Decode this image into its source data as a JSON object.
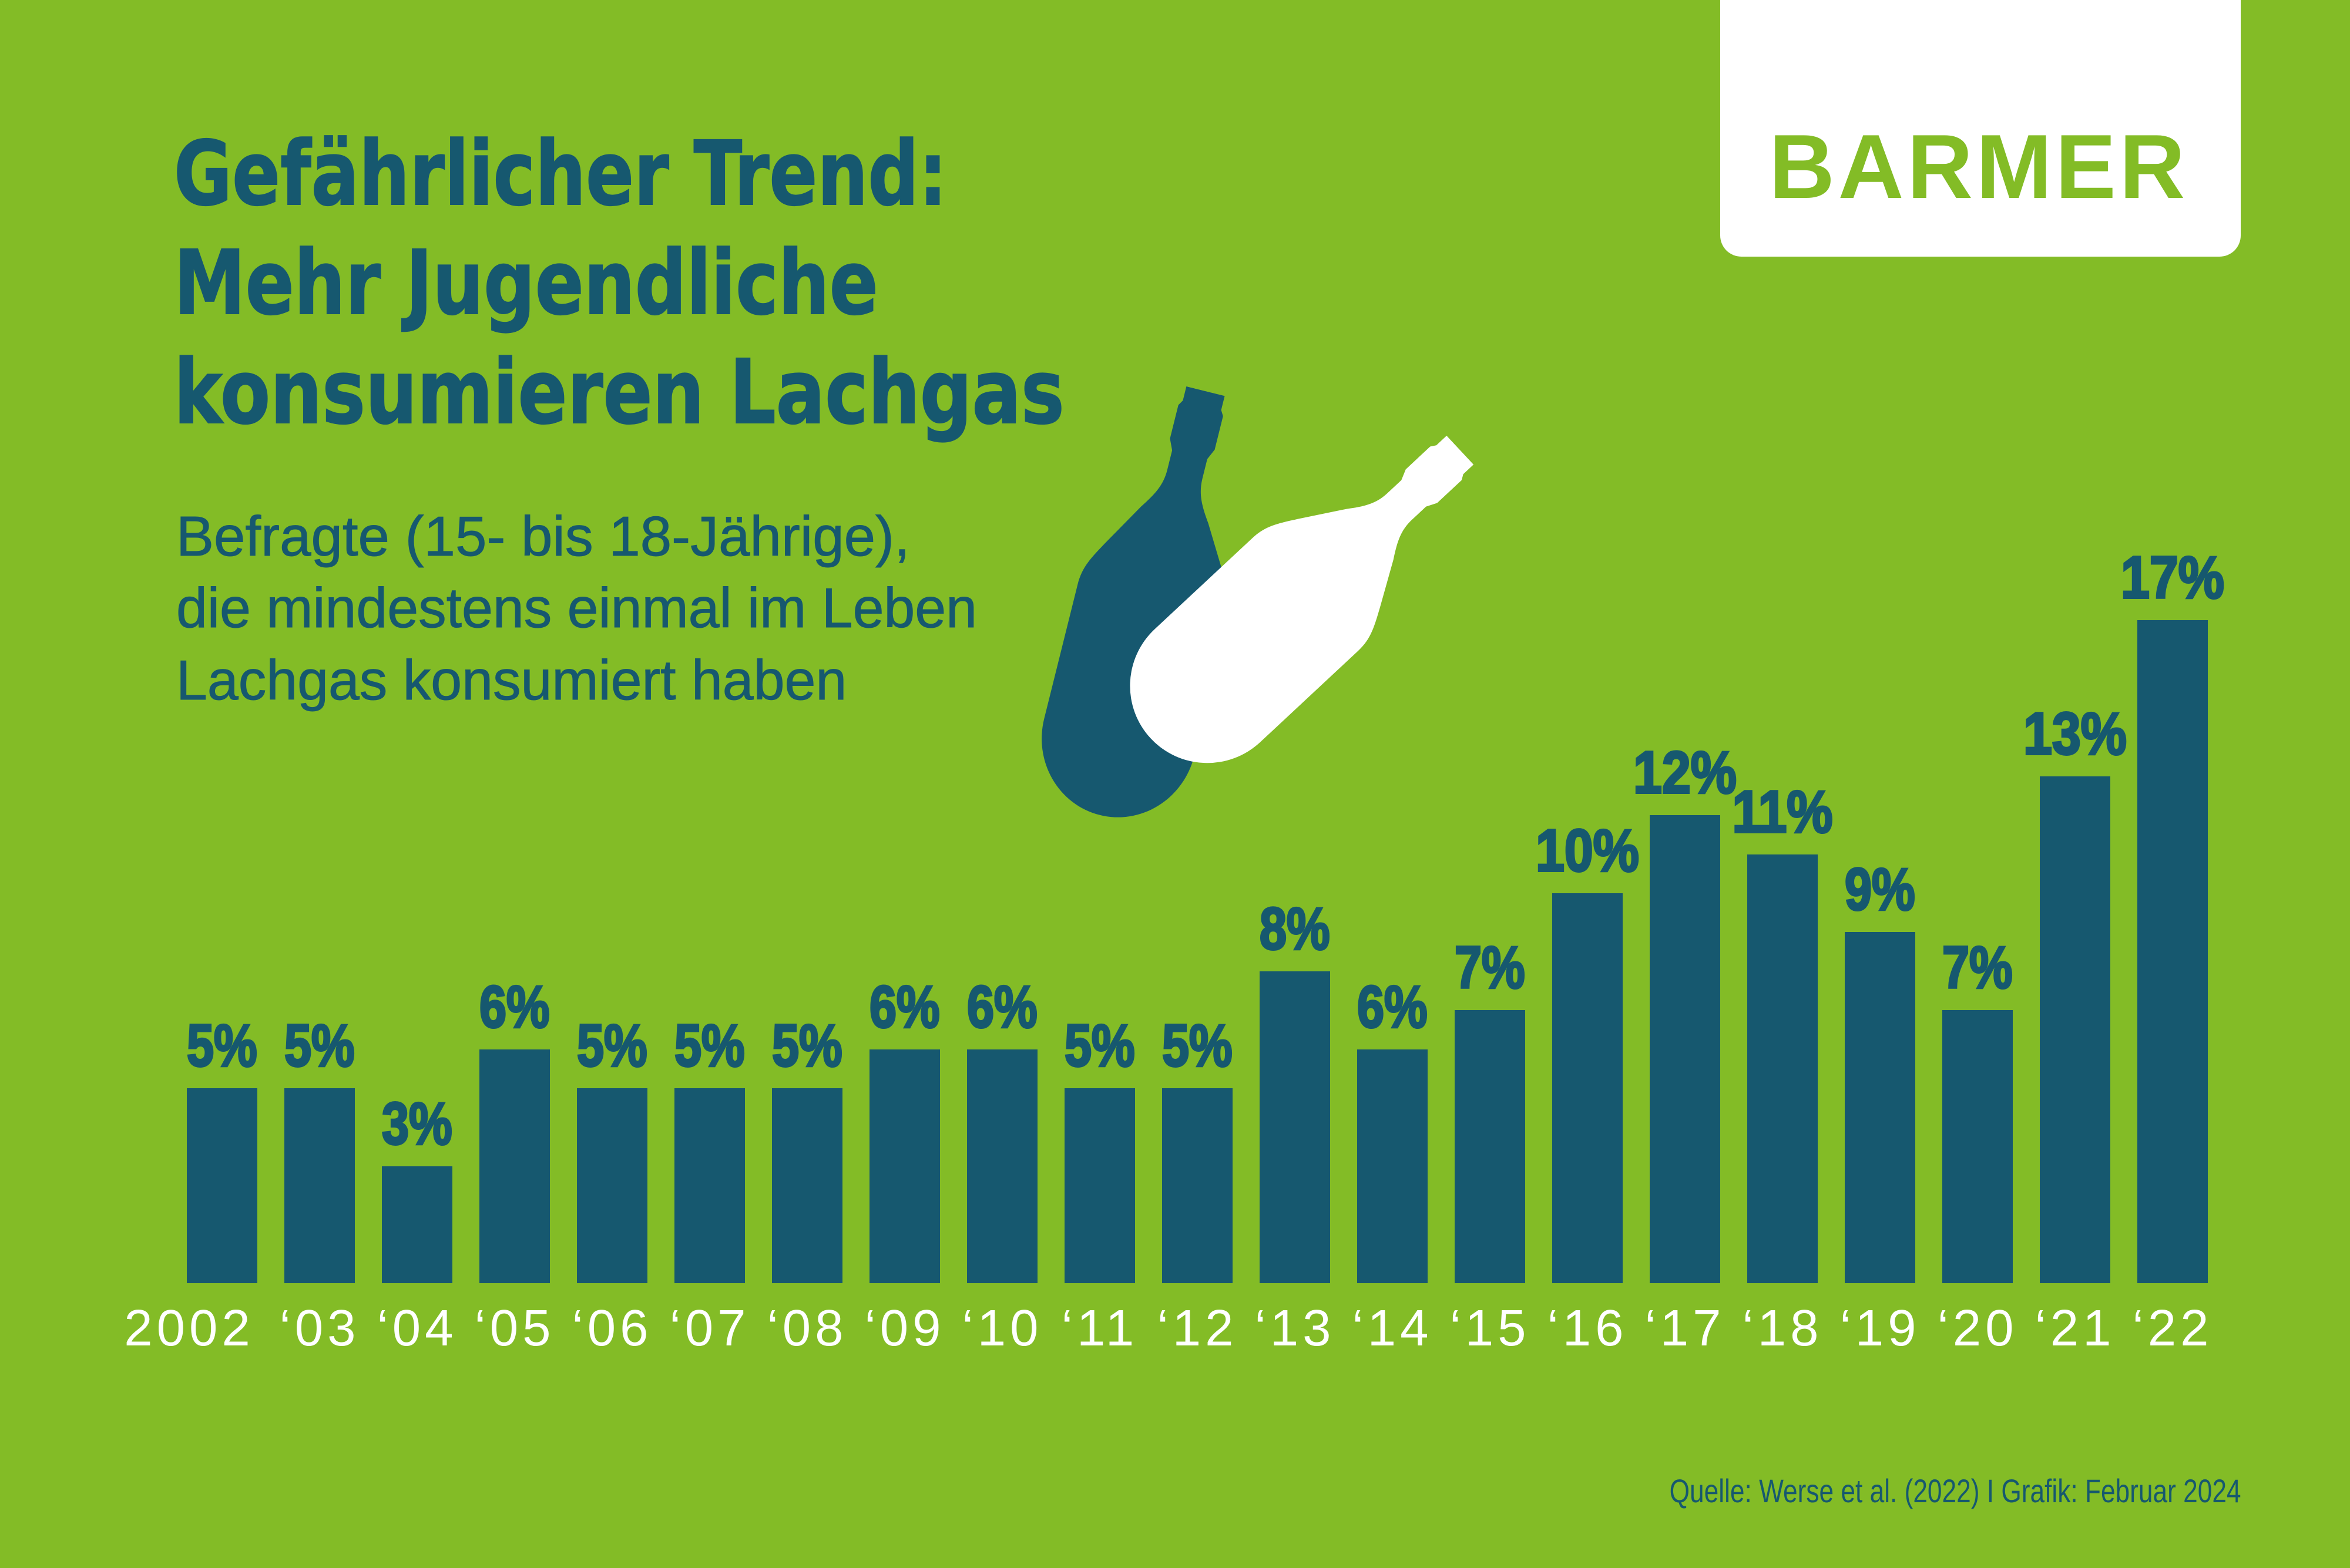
{
  "brand": {
    "logo_text": "BARMER"
  },
  "title": {
    "lines": [
      "Gefährlicher Trend:",
      "Mehr Jugendliche",
      "konsumieren Lachgas"
    ]
  },
  "subtitle": {
    "lines": [
      "Befragte (15- bis 18-Jährige),",
      "die mindestens einmal im Leben",
      "Lachgas konsumiert haben"
    ]
  },
  "source_note": "Quelle: Werse et al. (2022) I Grafik: Februar 2024",
  "colors": {
    "background": "#83BC26",
    "bar": "#16586F",
    "text_dark": "#16586F",
    "axis_label": "#FFFFFF",
    "logo_box": "#FFFFFF",
    "logo_text": "#83BC26",
    "cartridge_dark": "#16586F",
    "cartridge_light": "#FFFFFF"
  },
  "icons": [
    {
      "name": "gas-cartridge-dark-icon"
    },
    {
      "name": "gas-cartridge-white-icon"
    }
  ],
  "chart_data": {
    "type": "bar",
    "categories": [
      "2002",
      "‘03",
      "‘04",
      "‘05",
      "‘06",
      "‘07",
      "‘08",
      "‘09",
      "‘10",
      "‘11",
      "‘12",
      "‘13",
      "‘14",
      "‘15",
      "‘16",
      "‘17",
      "‘18",
      "‘19",
      "‘20",
      "‘21",
      "‘22"
    ],
    "values": [
      5,
      5,
      3,
      6,
      5,
      5,
      5,
      6,
      6,
      5,
      5,
      8,
      6,
      7,
      10,
      12,
      11,
      9,
      7,
      13,
      17
    ],
    "value_labels": [
      "5%",
      "5%",
      "3%",
      "6%",
      "5%",
      "5%",
      "5%",
      "6%",
      "6%",
      "5%",
      "5%",
      "8%",
      "6%",
      "7%",
      "10%",
      "12%",
      "11%",
      "9%",
      "7%",
      "13%",
      "17%"
    ],
    "unit": "%",
    "title": "Gefährlicher Trend: Mehr Jugendliche konsumieren Lachgas",
    "xlabel": "",
    "ylabel": "",
    "ylim": [
      0,
      18
    ],
    "grid": false,
    "legend": false,
    "bar_color": "#16586F",
    "value_label_color": "#16586F",
    "category_label_color": "#FFFFFF"
  }
}
